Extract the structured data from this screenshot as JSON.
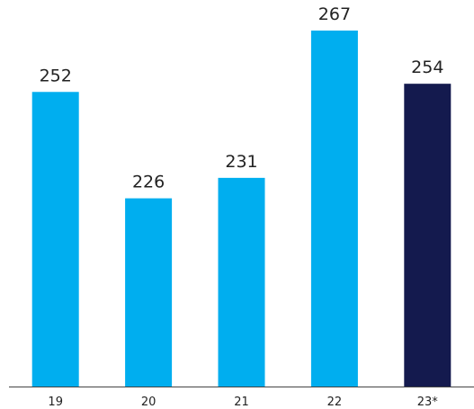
{
  "chart_data": {
    "type": "bar",
    "categories": [
      "19",
      "20",
      "21",
      "22",
      "23*"
    ],
    "values": [
      252,
      226,
      231,
      267,
      254
    ],
    "value_labels": [
      "252",
      "226",
      "231",
      "267",
      "254"
    ],
    "ylim": [
      180,
      267
    ],
    "grid": false,
    "legend": "none",
    "colors": {
      "default_bar": "#00aeef",
      "highlight_bar": "#141a4e",
      "axis": "#444444"
    },
    "highlight_index": 4
  }
}
